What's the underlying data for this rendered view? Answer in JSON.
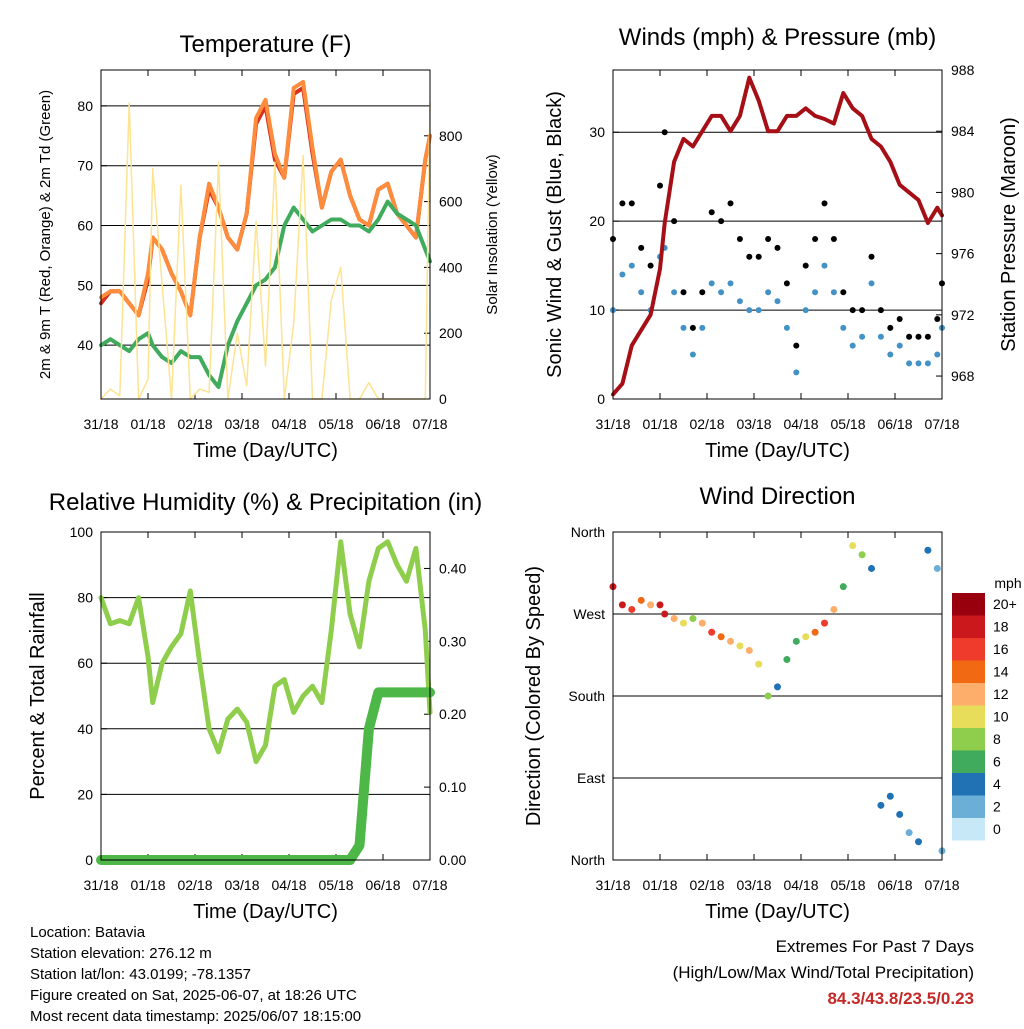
{
  "x_ticks": [
    "31/18",
    "01/18",
    "02/18",
    "03/18",
    "04/18",
    "05/18",
    "06/18",
    "07/18"
  ],
  "x_label": "Time (Day/UTC)",
  "chart_data": [
    {
      "type": "line",
      "title": "Temperature (F)",
      "xlabel": "Time (Day/UTC)",
      "ylabel": "2m & 9m T (Red, Orange) & 2m Td (Green)",
      "ylabel_right": "Solar Insolation (Yellow)",
      "ylim": [
        31,
        86
      ],
      "y_ticks": [
        "40",
        "50",
        "60",
        "70",
        "80"
      ],
      "ylim_right": [
        0,
        1000
      ],
      "y_ticks_right": [
        "0",
        "200",
        "400",
        "600",
        "800"
      ],
      "x_days": [
        0,
        0.2,
        0.4,
        0.6,
        0.8,
        1,
        1.1,
        1.3,
        1.5,
        1.7,
        1.9,
        2.1,
        2.3,
        2.5,
        2.7,
        2.9,
        3.1,
        3.3,
        3.5,
        3.7,
        3.9,
        4.1,
        4.3,
        4.5,
        4.7,
        4.9,
        5.1,
        5.3,
        5.5,
        5.7,
        5.9,
        6.1,
        6.3,
        6.5,
        6.7,
        6.9,
        7
      ],
      "series": [
        {
          "color": "#d7301f",
          "values": [
            47,
            49,
            49,
            47,
            45,
            51,
            58,
            56,
            52,
            49,
            45,
            58,
            66,
            63,
            58,
            56,
            62,
            77,
            80,
            71,
            68,
            82,
            83,
            72,
            63,
            69,
            71,
            65,
            61,
            60,
            66,
            67,
            62,
            60,
            58,
            71,
            75
          ]
        },
        {
          "color": "#fd8d3c",
          "values": [
            48,
            49,
            49,
            47,
            45,
            52,
            58,
            56,
            52,
            49,
            45,
            58,
            67,
            63,
            58,
            56,
            62,
            78,
            81,
            72,
            68,
            83,
            84,
            73,
            63,
            69,
            71,
            65,
            61,
            60,
            66,
            67,
            62,
            60,
            58,
            71,
            75
          ]
        },
        {
          "color": "#41ab5d",
          "values": [
            40,
            41,
            40,
            39,
            41,
            42,
            40,
            38,
            37,
            39,
            38,
            38,
            35,
            33,
            40,
            44,
            47,
            50,
            51,
            53,
            60,
            63,
            61,
            59,
            60,
            61,
            61,
            60,
            60,
            59,
            61,
            64,
            62,
            61,
            60,
            56,
            54
          ]
        },
        {
          "axis": "right",
          "color": "#fee391",
          "values": [
            0,
            30,
            10,
            900,
            0,
            60,
            700,
            350,
            0,
            650,
            0,
            30,
            20,
            720,
            0,
            200,
            40,
            540,
            100,
            720,
            0,
            230,
            740,
            0,
            0,
            300,
            400,
            0,
            0,
            50,
            0,
            0,
            0,
            0,
            0,
            0,
            900
          ]
        }
      ]
    },
    {
      "type": "scatter",
      "title": "Winds (mph) & Pressure (mb)",
      "xlabel": "Time (Day/UTC)",
      "ylabel": "Sonic Wind & Gust (Blue, Black)",
      "ylabel_right": "Station Pressure (Maroon)",
      "ylim": [
        0,
        37
      ],
      "y_ticks": [
        "0",
        "10",
        "20",
        "30"
      ],
      "ylim_right": [
        966.5,
        988
      ],
      "y_ticks_right": [
        "968",
        "972",
        "976",
        "980",
        "984",
        "988"
      ],
      "x_days": [
        0,
        0.2,
        0.4,
        0.6,
        0.8,
        1,
        1.1,
        1.3,
        1.5,
        1.7,
        1.9,
        2.1,
        2.3,
        2.5,
        2.7,
        2.9,
        3.1,
        3.3,
        3.5,
        3.7,
        3.9,
        4.1,
        4.3,
        4.5,
        4.7,
        4.9,
        5.1,
        5.3,
        5.5,
        5.7,
        5.9,
        6.1,
        6.3,
        6.5,
        6.7,
        6.9,
        7
      ],
      "series": [
        {
          "name": "wind",
          "color": "#4292c6",
          "values": [
            10,
            14,
            15,
            12,
            10,
            16,
            17,
            12,
            8,
            5,
            8,
            13,
            12,
            13,
            11,
            10,
            10,
            12,
            11,
            8,
            3,
            10,
            12,
            15,
            12,
            8,
            6,
            7,
            13,
            7,
            5,
            6,
            4,
            4,
            4,
            5,
            8
          ]
        },
        {
          "name": "gust",
          "color": "#000000",
          "values": [
            18,
            22,
            22,
            17,
            15,
            24,
            30,
            20,
            12,
            8,
            12,
            21,
            20,
            22,
            18,
            16,
            16,
            18,
            17,
            13,
            6,
            15,
            18,
            22,
            18,
            12,
            10,
            10,
            16,
            10,
            8,
            9,
            7,
            7,
            7,
            9,
            13
          ]
        },
        {
          "axis": "right",
          "color": "#a50f15",
          "values": [
            966.8,
            967.5,
            970,
            971,
            972,
            975,
            978,
            982,
            983.5,
            983,
            984,
            985,
            985,
            984,
            985,
            987.5,
            986,
            984,
            984,
            985,
            985,
            985.5,
            985,
            984.8,
            984.5,
            986.5,
            985.5,
            985,
            983.5,
            983,
            982,
            980.5,
            980,
            979.5,
            978,
            979,
            978.5
          ]
        }
      ]
    },
    {
      "type": "line",
      "title": "Relative Humidity (%) & Precipitation (in)",
      "xlabel": "Time (Day/UTC)",
      "ylabel": "Percent & Total Rainfall",
      "ylim": [
        0,
        100
      ],
      "y_ticks": [
        "0",
        "20",
        "40",
        "60",
        "80",
        "100"
      ],
      "ylim_right": [
        0,
        0.45
      ],
      "y_ticks_right": [
        "0.00",
        "0.10",
        "0.20",
        "0.30",
        "0.40"
      ],
      "x_days": [
        0,
        0.2,
        0.4,
        0.6,
        0.8,
        1,
        1.1,
        1.3,
        1.5,
        1.7,
        1.9,
        2.1,
        2.3,
        2.5,
        2.7,
        2.9,
        3.1,
        3.3,
        3.5,
        3.7,
        3.9,
        4.1,
        4.3,
        4.5,
        4.7,
        4.9,
        5.1,
        5.3,
        5.5,
        5.7,
        5.9,
        6.1,
        6.3,
        6.5,
        6.7,
        6.9,
        7
      ],
      "series": [
        {
          "color": "#8fce4c",
          "values": [
            80,
            72,
            73,
            72,
            80,
            62,
            48,
            60,
            65,
            69,
            82,
            60,
            40,
            33,
            43,
            46,
            42,
            30,
            35,
            53,
            55,
            45,
            50,
            53,
            48,
            70,
            97,
            75,
            65,
            85,
            95,
            97,
            90,
            85,
            95,
            70,
            45
          ]
        },
        {
          "axis": "right",
          "color": "#4db848",
          "values": [
            0,
            0,
            0,
            0,
            0,
            0,
            0,
            0,
            0,
            0,
            0,
            0,
            0,
            0,
            0,
            0,
            0,
            0,
            0,
            0,
            0,
            0,
            0,
            0,
            0,
            0,
            0,
            0,
            0.02,
            0.18,
            0.23,
            0.23,
            0.23,
            0.23,
            0.23,
            0.23,
            0.23
          ]
        }
      ]
    },
    {
      "type": "scatter",
      "title": "Wind Direction",
      "xlabel": "Time (Day/UTC)",
      "ylabel": "Direction (Colored By Speed)",
      "ylim": [
        0,
        360
      ],
      "y_ticks": [
        "North",
        "East",
        "South",
        "West",
        "North"
      ],
      "legend_title": "mph",
      "legend": [
        "20+",
        "18",
        "16",
        "14",
        "12",
        "10",
        "8",
        "6",
        "4",
        "2",
        "0"
      ],
      "legend_colors": [
        "#99000d",
        "#cb181d",
        "#ef3b2c",
        "#f16913",
        "#fdae6b",
        "#e8dd5a",
        "#8fce4c",
        "#41ab5d",
        "#2171b5",
        "#6baed6",
        "#c6e8f7"
      ],
      "x_days": [
        0,
        0.2,
        0.4,
        0.6,
        0.8,
        1,
        1.1,
        1.3,
        1.5,
        1.7,
        1.9,
        2.1,
        2.3,
        2.5,
        2.7,
        2.9,
        3.1,
        3.3,
        3.5,
        3.7,
        3.9,
        4.1,
        4.3,
        4.5,
        4.7,
        4.9,
        5.1,
        5.3,
        5.5,
        5.7,
        5.9,
        6.1,
        6.3,
        6.5,
        6.7,
        6.9,
        7
      ],
      "values": [
        300,
        280,
        275,
        285,
        280,
        280,
        270,
        265,
        260,
        265,
        260,
        250,
        245,
        240,
        235,
        230,
        215,
        180,
        190,
        220,
        240,
        245,
        250,
        260,
        275,
        300,
        345,
        335,
        320,
        60,
        70,
        50,
        30,
        20,
        340,
        320,
        10
      ],
      "speeds": [
        18,
        18,
        16,
        14,
        12,
        18,
        18,
        12,
        10,
        8,
        12,
        16,
        14,
        12,
        10,
        12,
        10,
        8,
        4,
        6,
        6,
        10,
        14,
        16,
        12,
        6,
        10,
        8,
        4,
        4,
        4,
        4,
        2,
        4,
        4,
        2,
        2
      ]
    }
  ],
  "info": {
    "location": "Location: Batavia",
    "elevation": "Station elevation: 276.12 m",
    "latlon": "Station lat/lon: 43.0199; -78.1357",
    "created": "Figure created on Sat, 2025-06-07, at 18:26 UTC",
    "recent": "Most recent data timestamp: 2025/06/07 18:15:00"
  },
  "extremes": {
    "title": "Extremes For Past 7 Days",
    "subtitle": "(High/Low/Max Wind/Total Precipitation)",
    "values": "84.3/43.8/23.5/0.23"
  }
}
